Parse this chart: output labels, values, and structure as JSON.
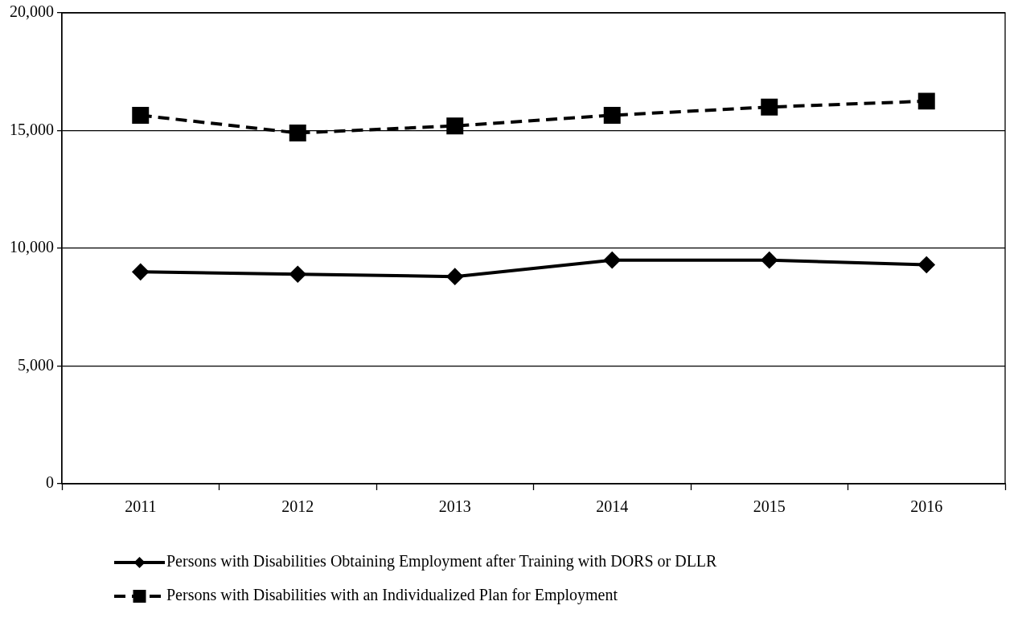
{
  "chart_data": {
    "type": "line",
    "categories": [
      "2011",
      "2012",
      "2013",
      "2014",
      "2015",
      "2016"
    ],
    "series": [
      {
        "name": "Persons with Disabilities Obtaining Employment after Training with DORS or DLLR",
        "color": "#000000",
        "marker": "diamond",
        "line_style": "solid",
        "values": [
          9000,
          8900,
          8800,
          9500,
          9500,
          9300
        ]
      },
      {
        "name": "Persons with Disabilities with an Individualized Plan for Employment",
        "color": "#000000",
        "marker": "square",
        "line_style": "dashed",
        "values": [
          15650,
          14900,
          15200,
          15650,
          16000,
          16250
        ]
      }
    ],
    "ylim": [
      0,
      20000
    ],
    "yticks": [
      {
        "value": 0,
        "label": "0"
      },
      {
        "value": 5000,
        "label": "5,000"
      },
      {
        "value": 10000,
        "label": "10,000"
      },
      {
        "value": 15000,
        "label": "15,000"
      },
      {
        "value": 20000,
        "label": "20,000"
      }
    ],
    "grid": "y",
    "legend": "bottom"
  }
}
